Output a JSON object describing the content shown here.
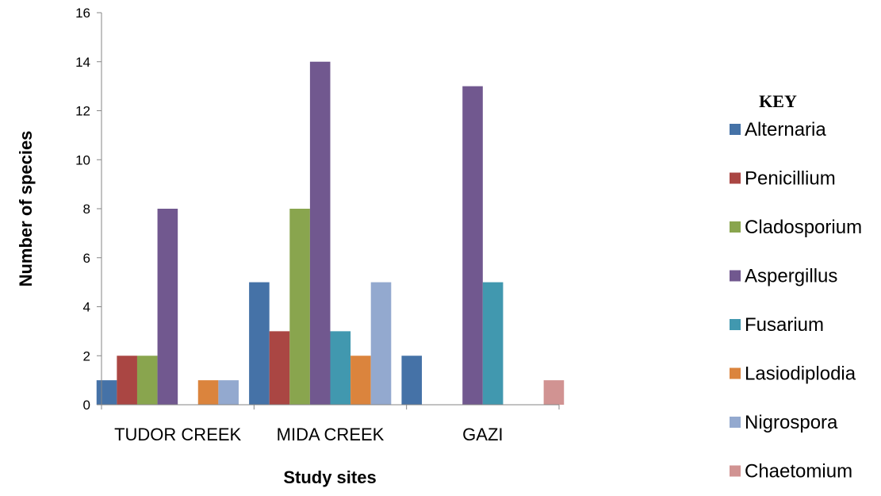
{
  "chart_data": {
    "type": "bar",
    "categories": [
      "TUDOR CREEK",
      "MIDA CREEK",
      "GAZI"
    ],
    "series": [
      {
        "name": "Alternaria",
        "values": [
          1,
          5,
          2
        ],
        "color": "#4572a7"
      },
      {
        "name": "Penicillium",
        "values": [
          2,
          3,
          0
        ],
        "color": "#aa4643"
      },
      {
        "name": "Cladosporium",
        "values": [
          2,
          8,
          0
        ],
        "color": "#89a54e"
      },
      {
        "name": "Aspergillus",
        "values": [
          8,
          14,
          13
        ],
        "color": "#71588f"
      },
      {
        "name": "Fusarium",
        "values": [
          0,
          3,
          5
        ],
        "color": "#4198af"
      },
      {
        "name": "Lasiodiplodia",
        "values": [
          1,
          2,
          0
        ],
        "color": "#db843d"
      },
      {
        "name": "Nigrospora",
        "values": [
          1,
          5,
          0
        ],
        "color": "#93a9cf"
      },
      {
        "name": "Chaetomium",
        "values": [
          0,
          0,
          1
        ],
        "color": "#d19392"
      }
    ],
    "xlabel": "Study sites",
    "ylabel": "Number of species",
    "ylim": [
      0,
      16
    ],
    "yticks": [
      0,
      2,
      4,
      6,
      8,
      10,
      12,
      14,
      16
    ],
    "grid": false,
    "legend_title": "KEY",
    "legend_position": "right"
  }
}
